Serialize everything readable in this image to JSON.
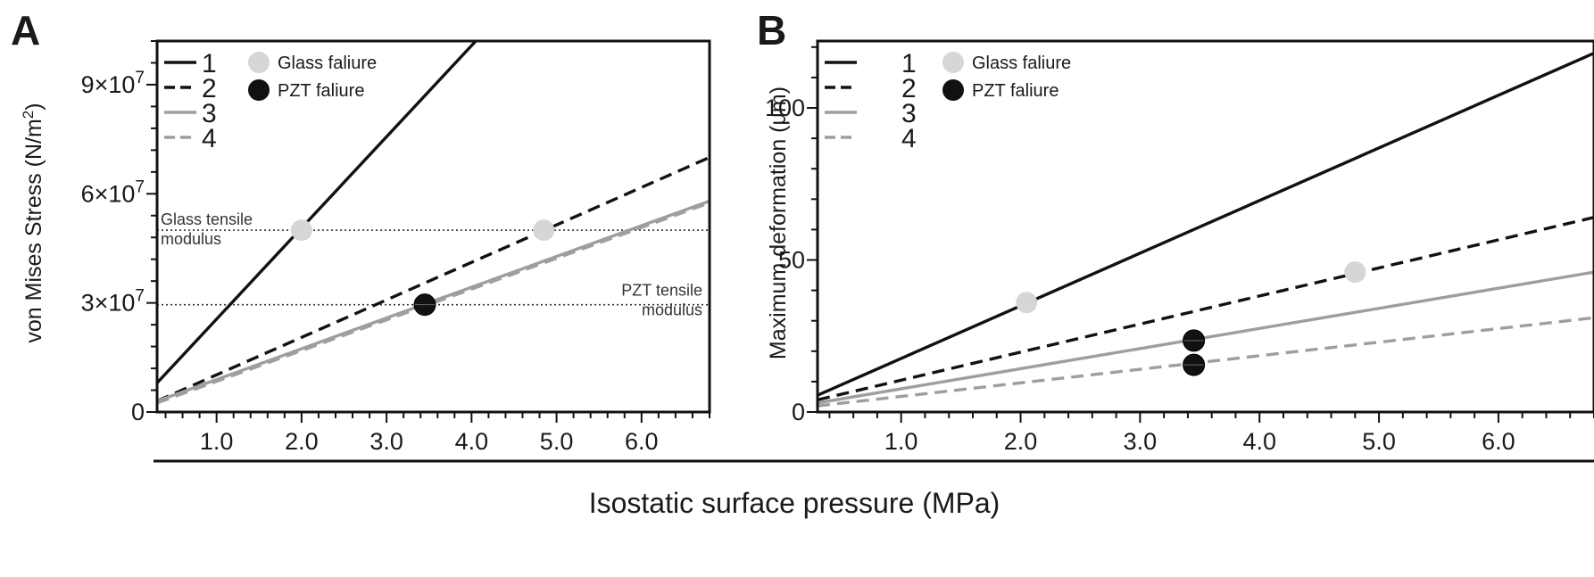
{
  "shared_xlabel": "Isostatic surface pressure (MPa)",
  "legend": {
    "lines": [
      {
        "label": "1",
        "color": "#111111",
        "dash": "solid"
      },
      {
        "label": "2",
        "color": "#111111",
        "dash": "dashed"
      },
      {
        "label": "3",
        "color": "#9e9e9e",
        "dash": "solid"
      },
      {
        "label": "4",
        "color": "#9e9e9e",
        "dash": "dashed"
      }
    ],
    "markers": [
      {
        "label": "Glass faliure",
        "color": "#d6d6d6"
      },
      {
        "label": "PZT faliure",
        "color": "#111111"
      }
    ]
  },
  "chart_data": [
    {
      "panel": "A",
      "type": "line",
      "ylabel": "von Mises Stress (N/m²)",
      "xlim": [
        0.3,
        6.8
      ],
      "ylim": [
        0,
        102000000
      ],
      "xticks": [
        {
          "value": 1.0,
          "label": "1.0"
        },
        {
          "value": 2.0,
          "label": "2.0"
        },
        {
          "value": 3.0,
          "label": "3.0"
        },
        {
          "value": 4.0,
          "label": "4.0"
        },
        {
          "value": 5.0,
          "label": "5.0"
        },
        {
          "value": 6.0,
          "label": "6.0"
        }
      ],
      "yticks": [
        {
          "value": 0,
          "label": "0"
        },
        {
          "value": 30000000,
          "label": "3×10⁷"
        },
        {
          "value": 60000000,
          "label": "6×10⁷"
        },
        {
          "value": 90000000,
          "label": "9×10⁷"
        }
      ],
      "series": [
        {
          "name": "1",
          "x": [
            0.3,
            4.05
          ],
          "y": [
            8000000,
            102000000
          ]
        },
        {
          "name": "2",
          "x": [
            0.3,
            6.8
          ],
          "y": [
            3000000,
            70000000
          ]
        },
        {
          "name": "3",
          "x": [
            0.3,
            6.8
          ],
          "y": [
            3000000,
            58000000
          ]
        },
        {
          "name": "4",
          "x": [
            0.3,
            6.8
          ],
          "y": [
            2500000,
            57500000
          ]
        }
      ],
      "reference_lines": [
        {
          "y": 50000000,
          "label": [
            "Glass tensile",
            "modulus"
          ],
          "align": "left"
        },
        {
          "y": 29500000,
          "label": [
            "PZT tensile",
            "modulus"
          ],
          "align": "right"
        }
      ],
      "failure_points": [
        {
          "type": "Glass faliure",
          "x": 2.0,
          "y": 50000000
        },
        {
          "type": "Glass faliure",
          "x": 4.85,
          "y": 50000000
        },
        {
          "type": "PZT faliure",
          "x": 3.45,
          "y": 29500000
        }
      ]
    },
    {
      "panel": "B",
      "type": "line",
      "ylabel": "Maximum deformation (μm)",
      "xlim": [
        0.3,
        6.8
      ],
      "ylim": [
        0,
        122
      ],
      "xticks": [
        {
          "value": 1.0,
          "label": "1.0"
        },
        {
          "value": 2.0,
          "label": "2.0"
        },
        {
          "value": 3.0,
          "label": "3.0"
        },
        {
          "value": 4.0,
          "label": "4.0"
        },
        {
          "value": 5.0,
          "label": "5.0"
        },
        {
          "value": 6.0,
          "label": "6.0"
        }
      ],
      "yticks": [
        {
          "value": 0,
          "label": "0"
        },
        {
          "value": 50,
          "label": "50"
        },
        {
          "value": 100,
          "label": "100"
        }
      ],
      "series": [
        {
          "name": "1",
          "x": [
            0.3,
            6.8
          ],
          "y": [
            5.5,
            118
          ]
        },
        {
          "name": "2",
          "x": [
            0.3,
            6.8
          ],
          "y": [
            4,
            64
          ]
        },
        {
          "name": "3",
          "x": [
            0.3,
            6.8
          ],
          "y": [
            3,
            46
          ]
        },
        {
          "name": "4",
          "x": [
            0.3,
            6.8
          ],
          "y": [
            2,
            31
          ]
        }
      ],
      "reference_lines": [],
      "failure_points": [
        {
          "type": "Glass faliure",
          "x": 2.05,
          "y": 36
        },
        {
          "type": "Glass faliure",
          "x": 4.8,
          "y": 46
        },
        {
          "type": "PZT faliure",
          "x": 3.45,
          "y": 23.5
        },
        {
          "type": "PZT faliure",
          "x": 3.45,
          "y": 15.5
        }
      ]
    }
  ]
}
